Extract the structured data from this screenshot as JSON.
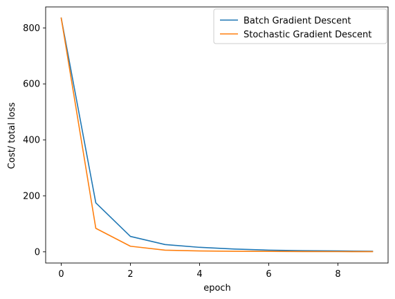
{
  "chart_data": {
    "type": "line",
    "title": "",
    "xlabel": "epoch",
    "ylabel": "Cost/ total loss",
    "xlim": [
      -0.45,
      9.45
    ],
    "ylim": [
      -40,
      875
    ],
    "xticks": [
      0,
      2,
      4,
      6,
      8
    ],
    "yticks": [
      0,
      200,
      400,
      600,
      800
    ],
    "x": [
      0,
      1,
      2,
      3,
      4,
      5,
      6,
      7,
      8,
      9
    ],
    "series": [
      {
        "name": "Batch Gradient Descent",
        "color": "#1f77b4",
        "values": [
          835,
          175,
          55,
          26,
          16,
          10,
          6,
          4,
          3,
          2
        ]
      },
      {
        "name": "Stochastic Gradient Descent",
        "color": "#ff7f0e",
        "values": [
          835,
          84,
          20,
          6,
          3,
          2,
          1.5,
          1,
          0.8,
          0.6
        ]
      }
    ],
    "grid": false,
    "legend_position": "top-right"
  }
}
